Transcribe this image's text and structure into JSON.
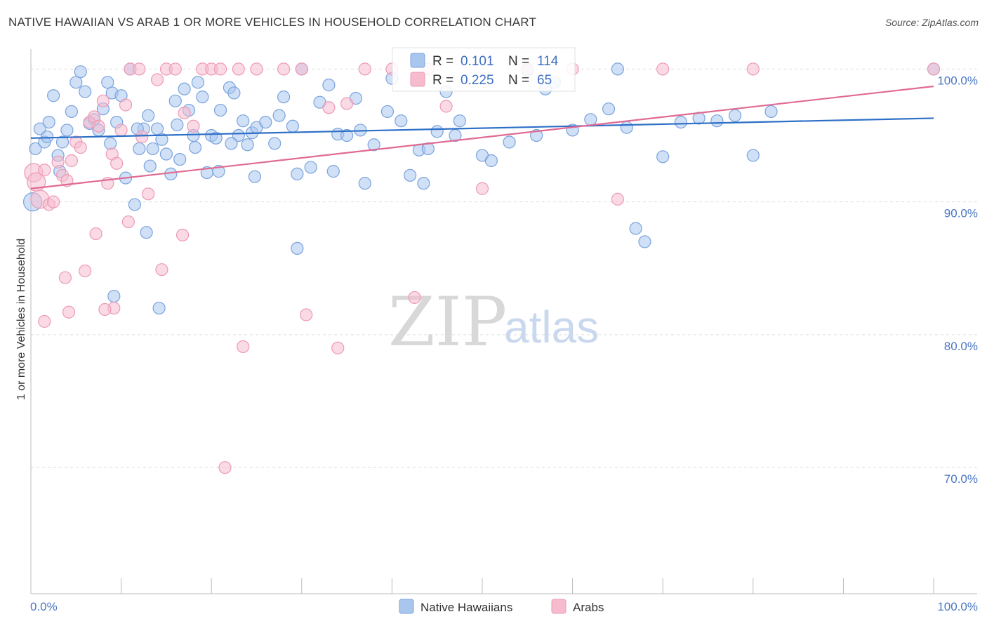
{
  "title": "NATIVE HAWAIIAN VS ARAB 1 OR MORE VEHICLES IN HOUSEHOLD CORRELATION CHART",
  "source": "Source: ZipAtlas.com",
  "watermark": {
    "zip": "ZIP",
    "atlas": "atlas"
  },
  "colors": {
    "blue_fill": "#a9c6ee",
    "blue_stroke": "#7aa3dd",
    "blue_line": "#2e6fc7",
    "pink_fill": "#f6bccd",
    "pink_stroke": "#ee9ab4",
    "pink_line": "#e06a92",
    "grid": "#dddddd",
    "axis_text": "#4a78c4"
  },
  "stats": {
    "r_label": "R =",
    "n_label": "N =",
    "rows": [
      {
        "series": "Native Hawaiians",
        "r": "0.101",
        "n": "114"
      },
      {
        "series": "Arabs",
        "r": "0.225",
        "n": "65"
      }
    ]
  },
  "chart_data": {
    "type": "scatter",
    "title": "NATIVE HAWAIIAN VS ARAB 1 OR MORE VEHICLES IN HOUSEHOLD CORRELATION CHART",
    "xlabel": "",
    "ylabel": "1 or more Vehicles in Household",
    "xlim": [
      0,
      100
    ],
    "ylim": [
      60.5,
      101.5
    ],
    "x_tick_labels": {
      "left": "0.0%",
      "right": "100.0%"
    },
    "y_ticks": [
      {
        "value": 70,
        "label": "70.0%"
      },
      {
        "value": 80,
        "label": "80.0%"
      },
      {
        "value": 90,
        "label": "90.0%"
      },
      {
        "value": 100,
        "label": "100.0%"
      }
    ],
    "grid": "horizontal dashed",
    "legend": {
      "placement": "bottom-center",
      "entries": [
        "Native Hawaiians",
        "Arabs"
      ]
    },
    "series": [
      {
        "name": "Native Hawaiians",
        "trend": {
          "x": [
            0,
            100
          ],
          "y": [
            94.8,
            96.3
          ]
        },
        "points": [
          [
            0.2,
            90
          ],
          [
            0.5,
            94
          ],
          [
            1,
            95.5
          ],
          [
            1.5,
            94.5
          ],
          [
            2,
            96
          ],
          [
            2.5,
            98
          ],
          [
            3,
            93.5
          ],
          [
            3.5,
            94.5
          ],
          [
            4,
            95.4
          ],
          [
            4.5,
            96.8
          ],
          [
            5,
            99
          ],
          [
            5.5,
            99.8
          ],
          [
            6,
            98.3
          ],
          [
            7,
            96.2
          ],
          [
            7.5,
            95.4
          ],
          [
            8,
            97
          ],
          [
            8.5,
            99
          ],
          [
            9,
            98.2
          ],
          [
            9.5,
            96
          ],
          [
            10,
            98
          ],
          [
            10.5,
            91.8
          ],
          [
            11,
            100
          ],
          [
            11.5,
            89.8
          ],
          [
            12,
            94
          ],
          [
            12.5,
            95.5
          ],
          [
            13,
            96.5
          ],
          [
            13.5,
            94
          ],
          [
            14,
            95.5
          ],
          [
            14.5,
            94.7
          ],
          [
            15,
            93.6
          ],
          [
            15.5,
            92.1
          ],
          [
            16,
            97.6
          ],
          [
            16.5,
            93.2
          ],
          [
            17,
            98.5
          ],
          [
            17.5,
            96.9
          ],
          [
            18,
            95
          ],
          [
            18.5,
            99
          ],
          [
            19,
            97.9
          ],
          [
            19.5,
            92.2
          ],
          [
            20,
            95
          ],
          [
            20.5,
            94.8
          ],
          [
            21,
            96.9
          ],
          [
            22,
            98.6
          ],
          [
            22.5,
            98.2
          ],
          [
            23,
            95
          ],
          [
            23.5,
            96.1
          ],
          [
            24,
            94.3
          ],
          [
            24.5,
            95.2
          ],
          [
            25,
            95.6
          ],
          [
            26,
            96
          ],
          [
            27,
            94.4
          ],
          [
            28,
            97.9
          ],
          [
            29,
            95.7
          ],
          [
            30,
            100
          ],
          [
            31,
            92.6
          ],
          [
            32,
            97.5
          ],
          [
            33,
            98.8
          ],
          [
            34,
            95.1
          ],
          [
            35,
            95
          ],
          [
            36,
            97.8
          ],
          [
            37,
            91.4
          ],
          [
            38,
            94.3
          ],
          [
            40,
            99.3
          ],
          [
            41,
            96.1
          ],
          [
            42,
            92
          ],
          [
            43,
            93.9
          ],
          [
            44,
            94
          ],
          [
            45,
            95.3
          ],
          [
            46,
            98.3
          ],
          [
            47,
            95
          ],
          [
            50,
            93.5
          ],
          [
            51,
            93.1
          ],
          [
            53,
            94.5
          ],
          [
            55,
            99.9
          ],
          [
            56,
            95
          ],
          [
            57,
            98.5
          ],
          [
            58,
            99
          ],
          [
            60,
            95.4
          ],
          [
            62,
            96.2
          ],
          [
            64,
            97
          ],
          [
            65,
            100
          ],
          [
            66,
            95.6
          ],
          [
            67,
            88
          ],
          [
            68,
            87
          ],
          [
            70,
            93.4
          ],
          [
            72,
            96
          ],
          [
            74,
            96.3
          ],
          [
            76,
            96.1
          ],
          [
            78,
            96.5
          ],
          [
            80,
            93.5
          ],
          [
            82,
            96.8
          ],
          [
            100,
            100
          ],
          [
            1.8,
            94.9
          ],
          [
            3.2,
            92.3
          ],
          [
            6.5,
            95.9
          ],
          [
            8.8,
            94.4
          ],
          [
            11.8,
            95.5
          ],
          [
            13.2,
            92.7
          ],
          [
            16.2,
            95.8
          ],
          [
            18.2,
            94.1
          ],
          [
            20.8,
            92.3
          ],
          [
            22.2,
            94.4
          ],
          [
            24.8,
            91.9
          ],
          [
            27.5,
            96.5
          ],
          [
            29.5,
            92.1
          ],
          [
            33.5,
            92.3
          ],
          [
            36.5,
            95.4
          ],
          [
            39.5,
            96.8
          ],
          [
            43.5,
            91.4
          ],
          [
            47.5,
            96.1
          ],
          [
            14.2,
            82
          ],
          [
            9.2,
            82.9
          ],
          [
            12.8,
            87.7
          ],
          [
            29.5,
            86.5
          ]
        ]
      },
      {
        "name": "Arabs",
        "trend": {
          "x": [
            0,
            100
          ],
          "y": [
            91.0,
            98.7
          ]
        },
        "points": [
          [
            0.3,
            92.2
          ],
          [
            0.6,
            91.5
          ],
          [
            1,
            90.2
          ],
          [
            1.5,
            92.4
          ],
          [
            2,
            89.8
          ],
          [
            2.5,
            90
          ],
          [
            3,
            93
          ],
          [
            3.5,
            92
          ],
          [
            4,
            91.6
          ],
          [
            4.5,
            93.1
          ],
          [
            5,
            94.5
          ],
          [
            5.5,
            94.1
          ],
          [
            6,
            84.8
          ],
          [
            6.5,
            96
          ],
          [
            7,
            96.4
          ],
          [
            7.5,
            95.7
          ],
          [
            8,
            97.6
          ],
          [
            8.5,
            91.4
          ],
          [
            9,
            93.6
          ],
          [
            9.5,
            92.9
          ],
          [
            10,
            95.4
          ],
          [
            10.5,
            97.3
          ],
          [
            11,
            100
          ],
          [
            12,
            100
          ],
          [
            13,
            90.6
          ],
          [
            14,
            99.2
          ],
          [
            15,
            100
          ],
          [
            16,
            100
          ],
          [
            17,
            96.7
          ],
          [
            18,
            95.7
          ],
          [
            19,
            100
          ],
          [
            20,
            100
          ],
          [
            21,
            100
          ],
          [
            23,
            100
          ],
          [
            25,
            100
          ],
          [
            28,
            100
          ],
          [
            30,
            100
          ],
          [
            33,
            97.1
          ],
          [
            35,
            97.4
          ],
          [
            37,
            100
          ],
          [
            40,
            100
          ],
          [
            44,
            100
          ],
          [
            46,
            97.2
          ],
          [
            50,
            91
          ],
          [
            55,
            100
          ],
          [
            60,
            100
          ],
          [
            65,
            90.2
          ],
          [
            70,
            100
          ],
          [
            80,
            100
          ],
          [
            100,
            100
          ],
          [
            3.8,
            84.3
          ],
          [
            7.2,
            87.6
          ],
          [
            10.8,
            88.5
          ],
          [
            14.5,
            84.9
          ],
          [
            16.8,
            87.5
          ],
          [
            4.2,
            81.7
          ],
          [
            9.2,
            82
          ],
          [
            8.2,
            81.9
          ],
          [
            1.5,
            81
          ],
          [
            30.5,
            81.5
          ],
          [
            23.5,
            79.1
          ],
          [
            34,
            79
          ],
          [
            21.5,
            70
          ],
          [
            42.5,
            82.8
          ],
          [
            12.3,
            94.9
          ]
        ]
      }
    ]
  }
}
